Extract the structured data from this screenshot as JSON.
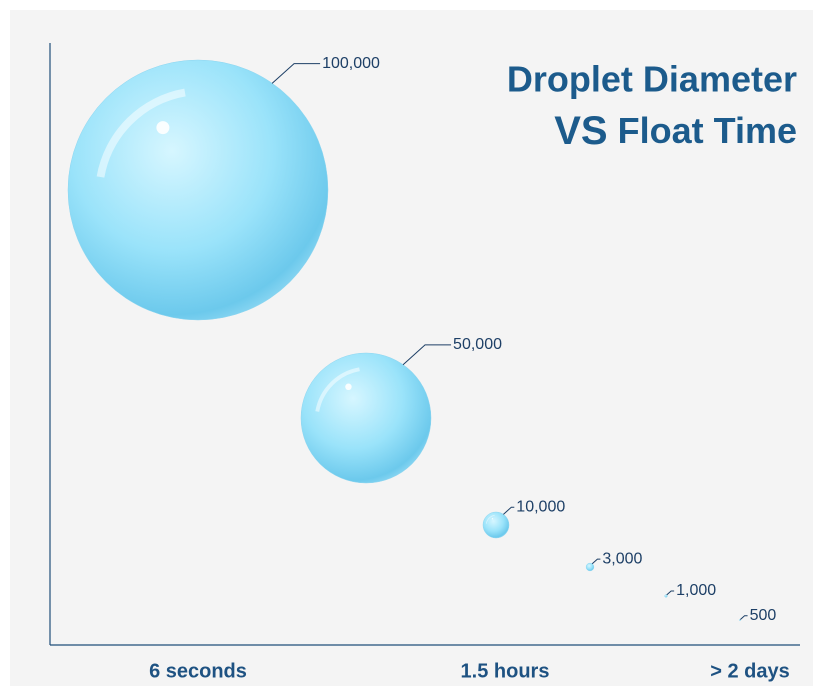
{
  "chart_data": {
    "type": "bubble",
    "title": {
      "line1": "Droplet Diameter",
      "vs": "VS",
      "line2": "Float Time"
    },
    "categories": [
      "6 seconds",
      null,
      "1.5 hours",
      null,
      null,
      "> 2 days"
    ],
    "values": [
      100000,
      50000,
      10000,
      3000,
      1000,
      500
    ],
    "value_labels": [
      "100,000",
      "50,000",
      "10,000",
      "3,000",
      "1,000",
      "500"
    ],
    "color": "#7fd6f2"
  }
}
